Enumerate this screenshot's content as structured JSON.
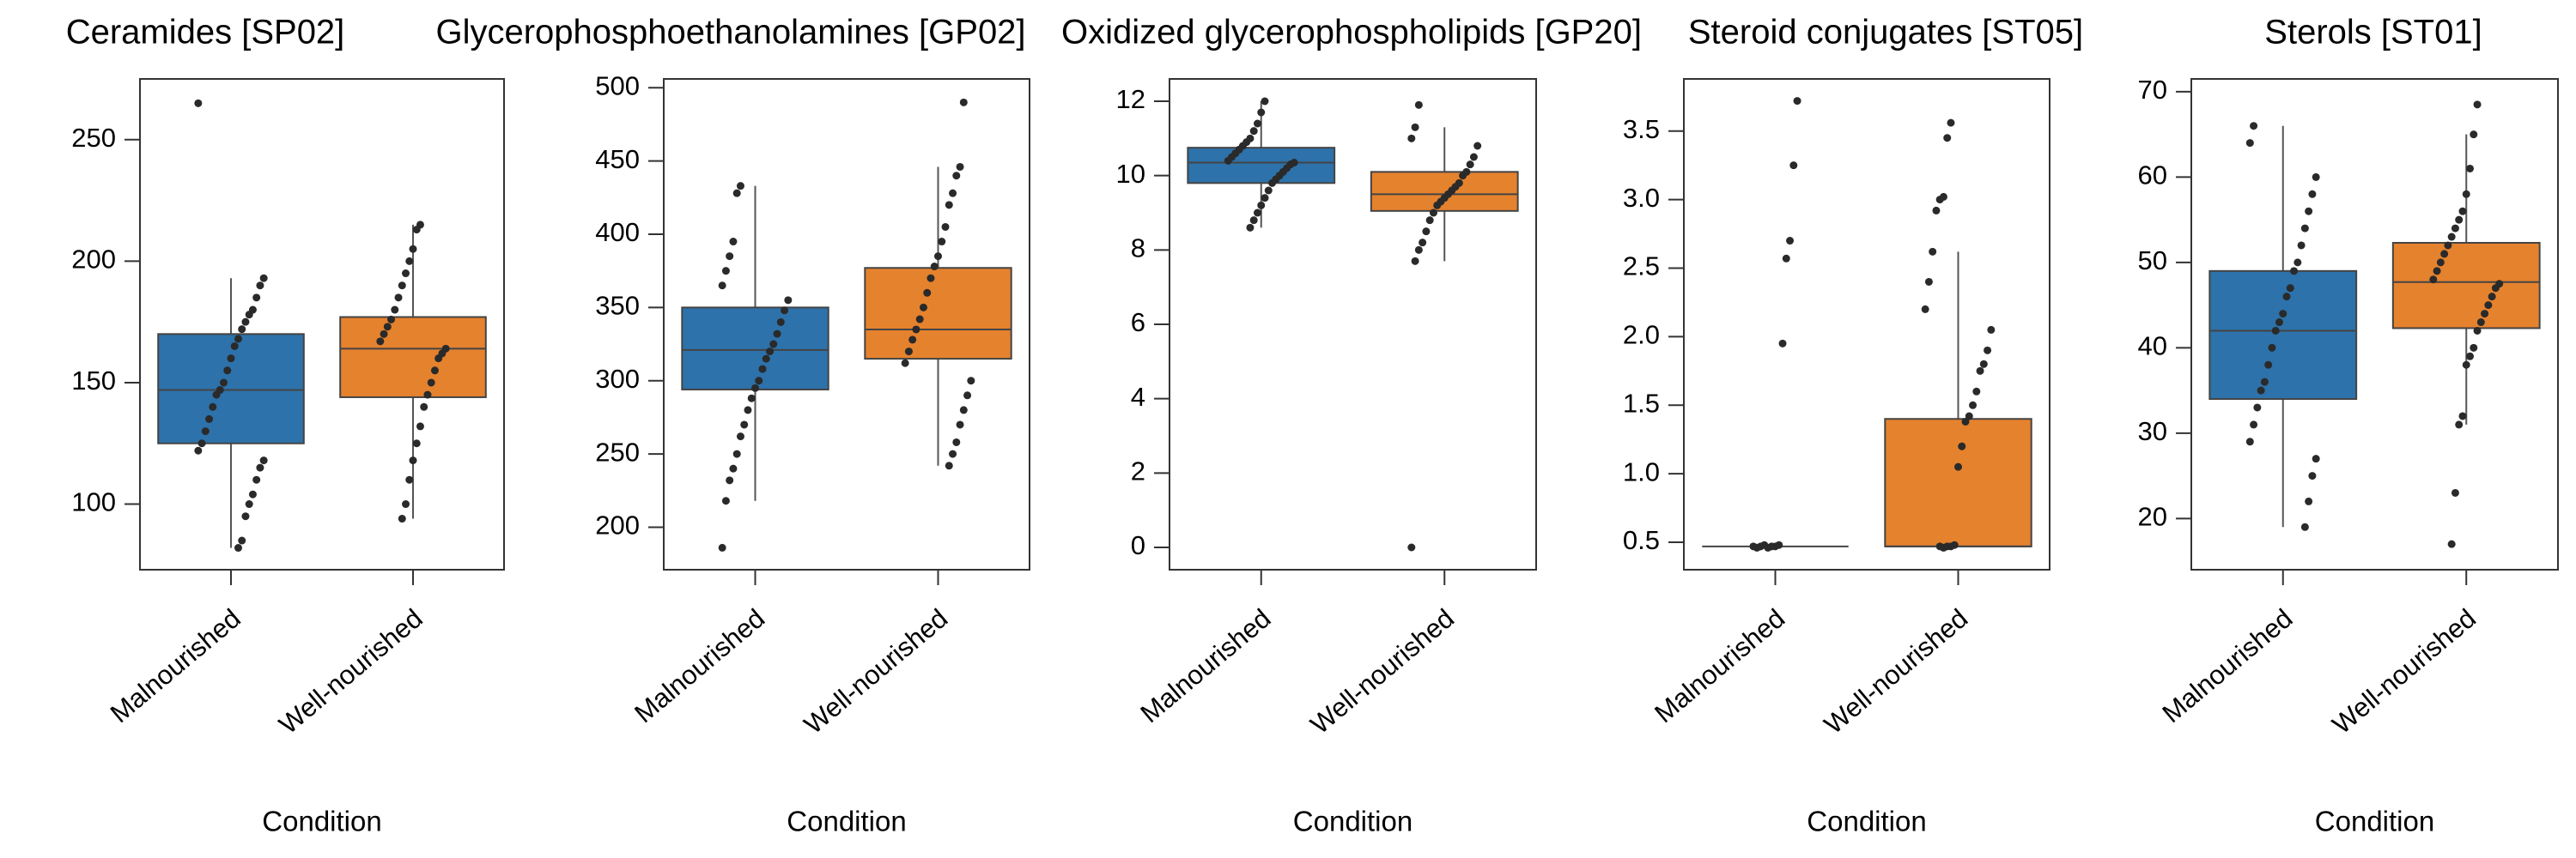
{
  "chart_data": [
    {
      "type": "box",
      "title": "Ceramides [SP02]",
      "x_label": "Condition",
      "categories": [
        "Malnourished",
        "Well-nourished"
      ],
      "colors": [
        "#2d72aa",
        "#e5822e"
      ],
      "ylim": [
        73,
        275
      ],
      "yticks": [
        100,
        150,
        200,
        250
      ],
      "boxes": [
        {
          "whislo": 82,
          "q1": 125,
          "med": 147,
          "q3": 170,
          "whishi": 193,
          "points": [
            265,
            193,
            190,
            185,
            180,
            178,
            175,
            172,
            168,
            165,
            160,
            155,
            150,
            147,
            145,
            140,
            135,
            130,
            125,
            122,
            118,
            115,
            110,
            104,
            100,
            95,
            85,
            82
          ]
        },
        {
          "whislo": 94,
          "q1": 144,
          "med": 164,
          "q3": 177,
          "whishi": 215,
          "points": [
            215,
            213,
            205,
            200,
            195,
            190,
            185,
            180,
            176,
            173,
            170,
            167,
            164,
            162,
            160,
            155,
            150,
            145,
            140,
            132,
            125,
            118,
            110,
            100,
            94
          ]
        }
      ]
    },
    {
      "type": "box",
      "title": "Glycerophosphoethanolamines [GP02]",
      "x_label": "Condition",
      "categories": [
        "Malnourished",
        "Well-nourished"
      ],
      "colors": [
        "#2d72aa",
        "#e5822e"
      ],
      "ylim": [
        171,
        506
      ],
      "yticks": [
        200,
        250,
        300,
        350,
        400,
        450,
        500
      ],
      "boxes": [
        {
          "whislo": 218,
          "q1": 294,
          "med": 321,
          "q3": 350,
          "whishi": 433,
          "points": [
            433,
            428,
            395,
            385,
            375,
            365,
            355,
            348,
            340,
            332,
            325,
            320,
            315,
            308,
            300,
            295,
            288,
            280,
            270,
            262,
            250,
            240,
            232,
            218,
            186
          ]
        },
        {
          "whislo": 242,
          "q1": 315,
          "med": 335,
          "q3": 377,
          "whishi": 446,
          "points": [
            490,
            446,
            440,
            428,
            420,
            405,
            395,
            385,
            378,
            370,
            360,
            350,
            342,
            335,
            328,
            320,
            312,
            300,
            290,
            280,
            270,
            258,
            250,
            242
          ]
        }
      ]
    },
    {
      "type": "box",
      "title": "Oxidized glycerophospholipids [GP20]",
      "x_label": "Condition",
      "categories": [
        "Malnourished",
        "Well-nourished"
      ],
      "colors": [
        "#2d72aa",
        "#e5822e"
      ],
      "ylim": [
        -0.6,
        12.6
      ],
      "yticks": [
        0,
        2,
        4,
        6,
        8,
        10,
        12
      ],
      "boxes": [
        {
          "whislo": 8.6,
          "q1": 9.8,
          "med": 10.35,
          "q3": 10.75,
          "whishi": 12.0,
          "points": [
            12.0,
            11.7,
            11.4,
            11.2,
            11.0,
            10.9,
            10.8,
            10.7,
            10.6,
            10.5,
            10.4,
            10.35,
            10.3,
            10.2,
            10.1,
            10.0,
            9.9,
            9.8,
            9.6,
            9.4,
            9.2,
            9.0,
            8.8,
            8.6
          ]
        },
        {
          "whislo": 7.7,
          "q1": 9.05,
          "med": 9.5,
          "q3": 10.1,
          "whishi": 11.3,
          "points": [
            11.9,
            11.3,
            11.0,
            10.8,
            10.5,
            10.3,
            10.1,
            10.0,
            9.8,
            9.7,
            9.6,
            9.5,
            9.4,
            9.3,
            9.2,
            9.0,
            8.8,
            8.5,
            8.2,
            8.0,
            7.7,
            0.0
          ]
        }
      ]
    },
    {
      "type": "box",
      "title": "Steroid conjugates [ST05]",
      "x_label": "Condition",
      "categories": [
        "Malnourished",
        "Well-nourished"
      ],
      "colors": [
        "#2d72aa",
        "#e5822e"
      ],
      "ylim": [
        0.3,
        3.88
      ],
      "yticks": [
        0.5,
        {
          "value": 1,
          "label": "1.0"
        },
        1.5,
        {
          "value": 2,
          "label": "2.0"
        },
        2.5,
        {
          "value": 3,
          "label": "3.0"
        },
        3.5
      ],
      "boxes": [
        {
          "whislo": 0.47,
          "q1": 0.47,
          "med": 0.47,
          "q3": 0.47,
          "whishi": 0.47,
          "points": [
            3.72,
            3.25,
            2.7,
            2.57,
            1.95,
            0.48,
            0.47,
            0.47,
            0.46,
            0.48,
            0.47,
            0.46,
            0.47
          ]
        },
        {
          "whislo": 0.47,
          "q1": 0.47,
          "med": 0.47,
          "q3": 1.4,
          "whishi": 2.62,
          "points": [
            3.56,
            3.45,
            3.02,
            3.0,
            2.92,
            2.62,
            2.4,
            2.2,
            2.05,
            1.9,
            1.8,
            1.75,
            1.6,
            1.5,
            1.42,
            1.38,
            1.2,
            1.05,
            0.48,
            0.47,
            0.47,
            0.46,
            0.47
          ]
        }
      ]
    },
    {
      "type": "box",
      "title": "Sterols [ST01]",
      "x_label": "Condition",
      "categories": [
        "Malnourished",
        "Well-nourished"
      ],
      "colors": [
        "#2d72aa",
        "#e5822e"
      ],
      "ylim": [
        14,
        71.5
      ],
      "yticks": [
        20,
        30,
        40,
        50,
        60,
        70
      ],
      "boxes": [
        {
          "whislo": 19,
          "q1": 34,
          "med": 42,
          "q3": 49,
          "whishi": 66,
          "points": [
            66,
            64,
            60,
            58,
            56,
            54,
            52,
            50,
            49,
            47,
            46,
            44,
            43,
            42,
            40,
            38,
            36,
            35,
            33,
            31,
            29,
            27,
            25,
            22,
            19
          ]
        },
        {
          "whislo": 31,
          "q1": 42.3,
          "med": 47.7,
          "q3": 52.3,
          "whishi": 65,
          "points": [
            68.5,
            65,
            61,
            58,
            56,
            55,
            54,
            53,
            52,
            51,
            50,
            49,
            48,
            47.5,
            47,
            46,
            45,
            44,
            43,
            42,
            40,
            39,
            38,
            32,
            31,
            23,
            17
          ]
        }
      ]
    }
  ]
}
